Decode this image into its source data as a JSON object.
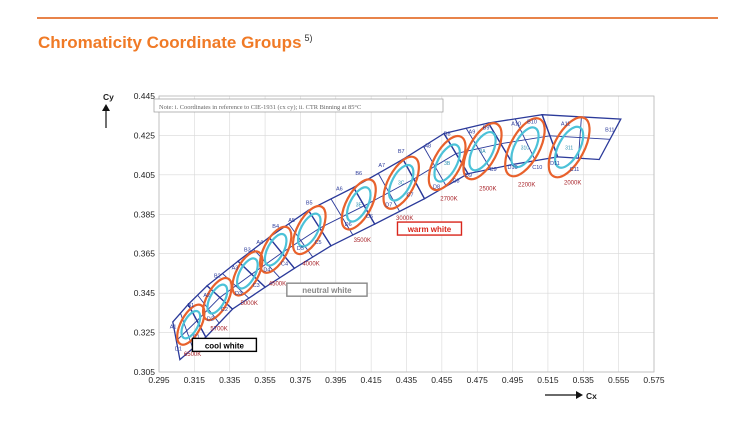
{
  "header": {
    "title": "Chromaticity Coordinate Groups",
    "footnote": "5)"
  },
  "chart_data": {
    "type": "scatter",
    "title": "Chromaticity Coordinate Groups",
    "xlabel": "Cx",
    "ylabel": "Cy",
    "xlim": [
      0.295,
      0.575
    ],
    "ylim": [
      0.305,
      0.445
    ],
    "xticks": [
      "0.295",
      "0.315",
      "0.335",
      "0.355",
      "0.375",
      "0.395",
      "0.415",
      "0.435",
      "0.455",
      "0.475",
      "0.495",
      "0.515",
      "0.535",
      "0.555",
      "0.575"
    ],
    "yticks": [
      "0.305",
      "0.325",
      "0.345",
      "0.365",
      "0.385",
      "0.405",
      "0.425",
      "0.445"
    ],
    "grid": true,
    "note": "Note: i. Coordinates in reference to CIE-1931 (cx cy); ii. CTR Binning at 85°C",
    "region_labels": [
      {
        "text": "cool white",
        "x": 0.332,
        "y": 0.318,
        "color": "#000000"
      },
      {
        "text": "neutral white",
        "x": 0.39,
        "y": 0.346,
        "color": "#888888"
      },
      {
        "text": "warm white",
        "x": 0.448,
        "y": 0.377,
        "color": "#d9261c"
      }
    ],
    "series": [
      {
        "group": "6500K",
        "cct": "6500K",
        "center": [
          0.313,
          0.329
        ],
        "center_label": "",
        "bins": [
          {
            "name": "A1",
            "x": 0.303,
            "y": 0.327
          },
          {
            "name": "B1",
            "x": 0.313,
            "y": 0.338
          },
          {
            "name": "C1",
            "x": 0.316,
            "y": 0.322
          },
          {
            "name": "D1",
            "x": 0.306,
            "y": 0.316
          }
        ],
        "cct_pos": [
          0.314,
          0.313
        ],
        "points": [
          [
            0.3028,
            0.3304
          ],
          [
            0.3115,
            0.3393
          ],
          [
            0.3215,
            0.3227
          ],
          [
            0.3068,
            0.3113
          ]
        ]
      },
      {
        "group": "5700K",
        "cct": "5700K",
        "center": [
          0.328,
          0.342
        ],
        "center_label": "",
        "bins": [
          {
            "name": "A2",
            "x": 0.322,
            "y": 0.343
          },
          {
            "name": "B2",
            "x": 0.328,
            "y": 0.353
          },
          {
            "name": "C2",
            "x": 0.332,
            "y": 0.336
          },
          {
            "name": "D2",
            "x": 0.324,
            "y": 0.331
          }
        ],
        "cct_pos": [
          0.329,
          0.326
        ],
        "points": [
          [
            0.3115,
            0.3393
          ],
          [
            0.3222,
            0.3487
          ],
          [
            0.3366,
            0.3369
          ],
          [
            0.3215,
            0.3227
          ]
        ]
      },
      {
        "group": "5000K",
        "cct": "5000K",
        "center": [
          0.345,
          0.355
        ],
        "center_label": "",
        "bins": [
          {
            "name": "A3",
            "x": 0.338,
            "y": 0.357
          },
          {
            "name": "B3",
            "x": 0.345,
            "y": 0.366
          },
          {
            "name": "C3",
            "x": 0.35,
            "y": 0.348
          },
          {
            "name": "D3",
            "x": 0.34,
            "y": 0.344
          }
        ],
        "cct_pos": [
          0.346,
          0.339
        ],
        "points": [
          [
            0.3222,
            0.3487
          ],
          [
            0.3397,
            0.3612
          ],
          [
            0.3551,
            0.348
          ],
          [
            0.3366,
            0.3369
          ]
        ]
      },
      {
        "group": "4500K",
        "cct": "4500K",
        "center": [
          0.361,
          0.367
        ],
        "center_label": "",
        "bins": [
          {
            "name": "A4",
            "x": 0.352,
            "y": 0.37
          },
          {
            "name": "B4",
            "x": 0.361,
            "y": 0.378
          },
          {
            "name": "C4",
            "x": 0.366,
            "y": 0.359
          },
          {
            "name": "D4",
            "x": 0.356,
            "y": 0.356
          }
        ],
        "cct_pos": [
          0.362,
          0.349
        ],
        "points": [
          [
            0.3397,
            0.3612
          ],
          [
            0.3573,
            0.3733
          ],
          [
            0.3716,
            0.3576
          ],
          [
            0.3551,
            0.348
          ]
        ]
      },
      {
        "group": "4000K",
        "cct": "4000K",
        "center": [
          0.38,
          0.377
        ],
        "center_label": "",
        "bins": [
          {
            "name": "A5",
            "x": 0.37,
            "y": 0.381
          },
          {
            "name": "B5",
            "x": 0.38,
            "y": 0.39
          },
          {
            "name": "C5",
            "x": 0.385,
            "y": 0.37
          },
          {
            "name": "D5",
            "x": 0.375,
            "y": 0.367
          }
        ],
        "cct_pos": [
          0.381,
          0.359
        ],
        "points": [
          [
            0.3573,
            0.3733
          ],
          [
            0.3795,
            0.387
          ],
          [
            0.3923,
            0.369
          ],
          [
            0.3716,
            0.3576
          ]
        ]
      },
      {
        "group": "3500K",
        "cct": "3500K",
        "center": [
          0.408,
          0.39
        ],
        "center_label": "3E",
        "bins": [
          {
            "name": "A6",
            "x": 0.397,
            "y": 0.397
          },
          {
            "name": "B6",
            "x": 0.408,
            "y": 0.405
          },
          {
            "name": "C6",
            "x": 0.414,
            "y": 0.383
          },
          {
            "name": "D6",
            "x": 0.402,
            "y": 0.379
          }
        ],
        "cct_pos": [
          0.41,
          0.371
        ],
        "points": [
          [
            0.3795,
            0.387
          ],
          [
            0.4051,
            0.3986
          ],
          [
            0.417,
            0.38
          ],
          [
            0.3923,
            0.369
          ]
        ]
      },
      {
        "group": "3000K",
        "cct": "3000K",
        "center": [
          0.432,
          0.401
        ],
        "center_label": "3C",
        "bins": [
          {
            "name": "A7",
            "x": 0.421,
            "y": 0.409
          },
          {
            "name": "B7",
            "x": 0.432,
            "y": 0.416
          },
          {
            "name": "C7",
            "x": 0.437,
            "y": 0.394
          },
          {
            "name": "D7",
            "x": 0.425,
            "y": 0.389
          }
        ],
        "cct_pos": [
          0.434,
          0.382
        ],
        "points": [
          [
            0.4051,
            0.3986
          ],
          [
            0.433,
            0.4129
          ],
          [
            0.4452,
            0.3929
          ],
          [
            0.417,
            0.38
          ]
        ]
      },
      {
        "group": "2700K",
        "cct": "2700K",
        "center": [
          0.458,
          0.411
        ],
        "center_label": "3B",
        "bins": [
          {
            "name": "A8",
            "x": 0.447,
            "y": 0.419
          },
          {
            "name": "B8",
            "x": 0.458,
            "y": 0.425
          },
          {
            "name": "C8",
            "x": 0.463,
            "y": 0.401
          },
          {
            "name": "D8",
            "x": 0.452,
            "y": 0.398
          }
        ],
        "cct_pos": [
          0.459,
          0.392
        ],
        "points": [
          [
            0.433,
            0.4129
          ],
          [
            0.4562,
            0.426
          ],
          [
            0.4698,
            0.4056
          ],
          [
            0.4452,
            0.3929
          ]
        ]
      },
      {
        "group": "2500K",
        "cct": "2500K",
        "center": [
          0.478,
          0.417
        ],
        "center_label": "3A",
        "bins": [
          {
            "name": "A9",
            "x": 0.472,
            "y": 0.426
          },
          {
            "name": "B9",
            "x": 0.48,
            "y": 0.428
          },
          {
            "name": "C9",
            "x": 0.484,
            "y": 0.407
          },
          {
            "name": "D9",
            "x": 0.47,
            "y": 0.404
          }
        ],
        "cct_pos": [
          0.481,
          0.397
        ],
        "points": [
          [
            0.4562,
            0.426
          ],
          [
            0.4813,
            0.4313
          ],
          [
            0.4953,
            0.4103
          ],
          [
            0.4698,
            0.4056
          ]
        ]
      },
      {
        "group": "2200K",
        "cct": "2200K",
        "center": [
          0.502,
          0.419
        ],
        "center_label": "310",
        "bins": [
          {
            "name": "A10",
            "x": 0.497,
            "y": 0.43
          },
          {
            "name": "B10",
            "x": 0.506,
            "y": 0.431
          },
          {
            "name": "C10",
            "x": 0.509,
            "y": 0.408
          },
          {
            "name": "D10",
            "x": 0.495,
            "y": 0.408
          }
        ],
        "cct_pos": [
          0.503,
          0.399
        ],
        "points": [
          [
            0.4813,
            0.4313
          ],
          [
            0.5117,
            0.4355
          ],
          [
            0.5205,
            0.4141
          ],
          [
            0.4953,
            0.4103
          ]
        ]
      },
      {
        "group": "2000K",
        "cct": "2000K",
        "center": [
          0.527,
          0.419
        ],
        "center_label": "311",
        "bins": [
          {
            "name": "A11",
            "x": 0.525,
            "y": 0.43
          },
          {
            "name": "B11",
            "x": 0.55,
            "y": 0.427
          },
          {
            "name": "C11",
            "x": 0.53,
            "y": 0.407
          },
          {
            "name": "D11",
            "x": 0.519,
            "y": 0.41
          }
        ],
        "cct_pos": [
          0.529,
          0.4
        ],
        "points": [
          [
            0.5117,
            0.4355
          ],
          [
            0.5562,
            0.4333
          ],
          [
            0.544,
            0.4128
          ],
          [
            0.5205,
            0.4141
          ]
        ]
      }
    ]
  },
  "colors": {
    "title": "#f07a26",
    "grid_line": "#d8d8d8",
    "quad_outline": "#2b3a9a",
    "ellipse_outer": "#e8612c",
    "ellipse_inner": "#4cc2d8",
    "cct_label": "#a8242a"
  }
}
